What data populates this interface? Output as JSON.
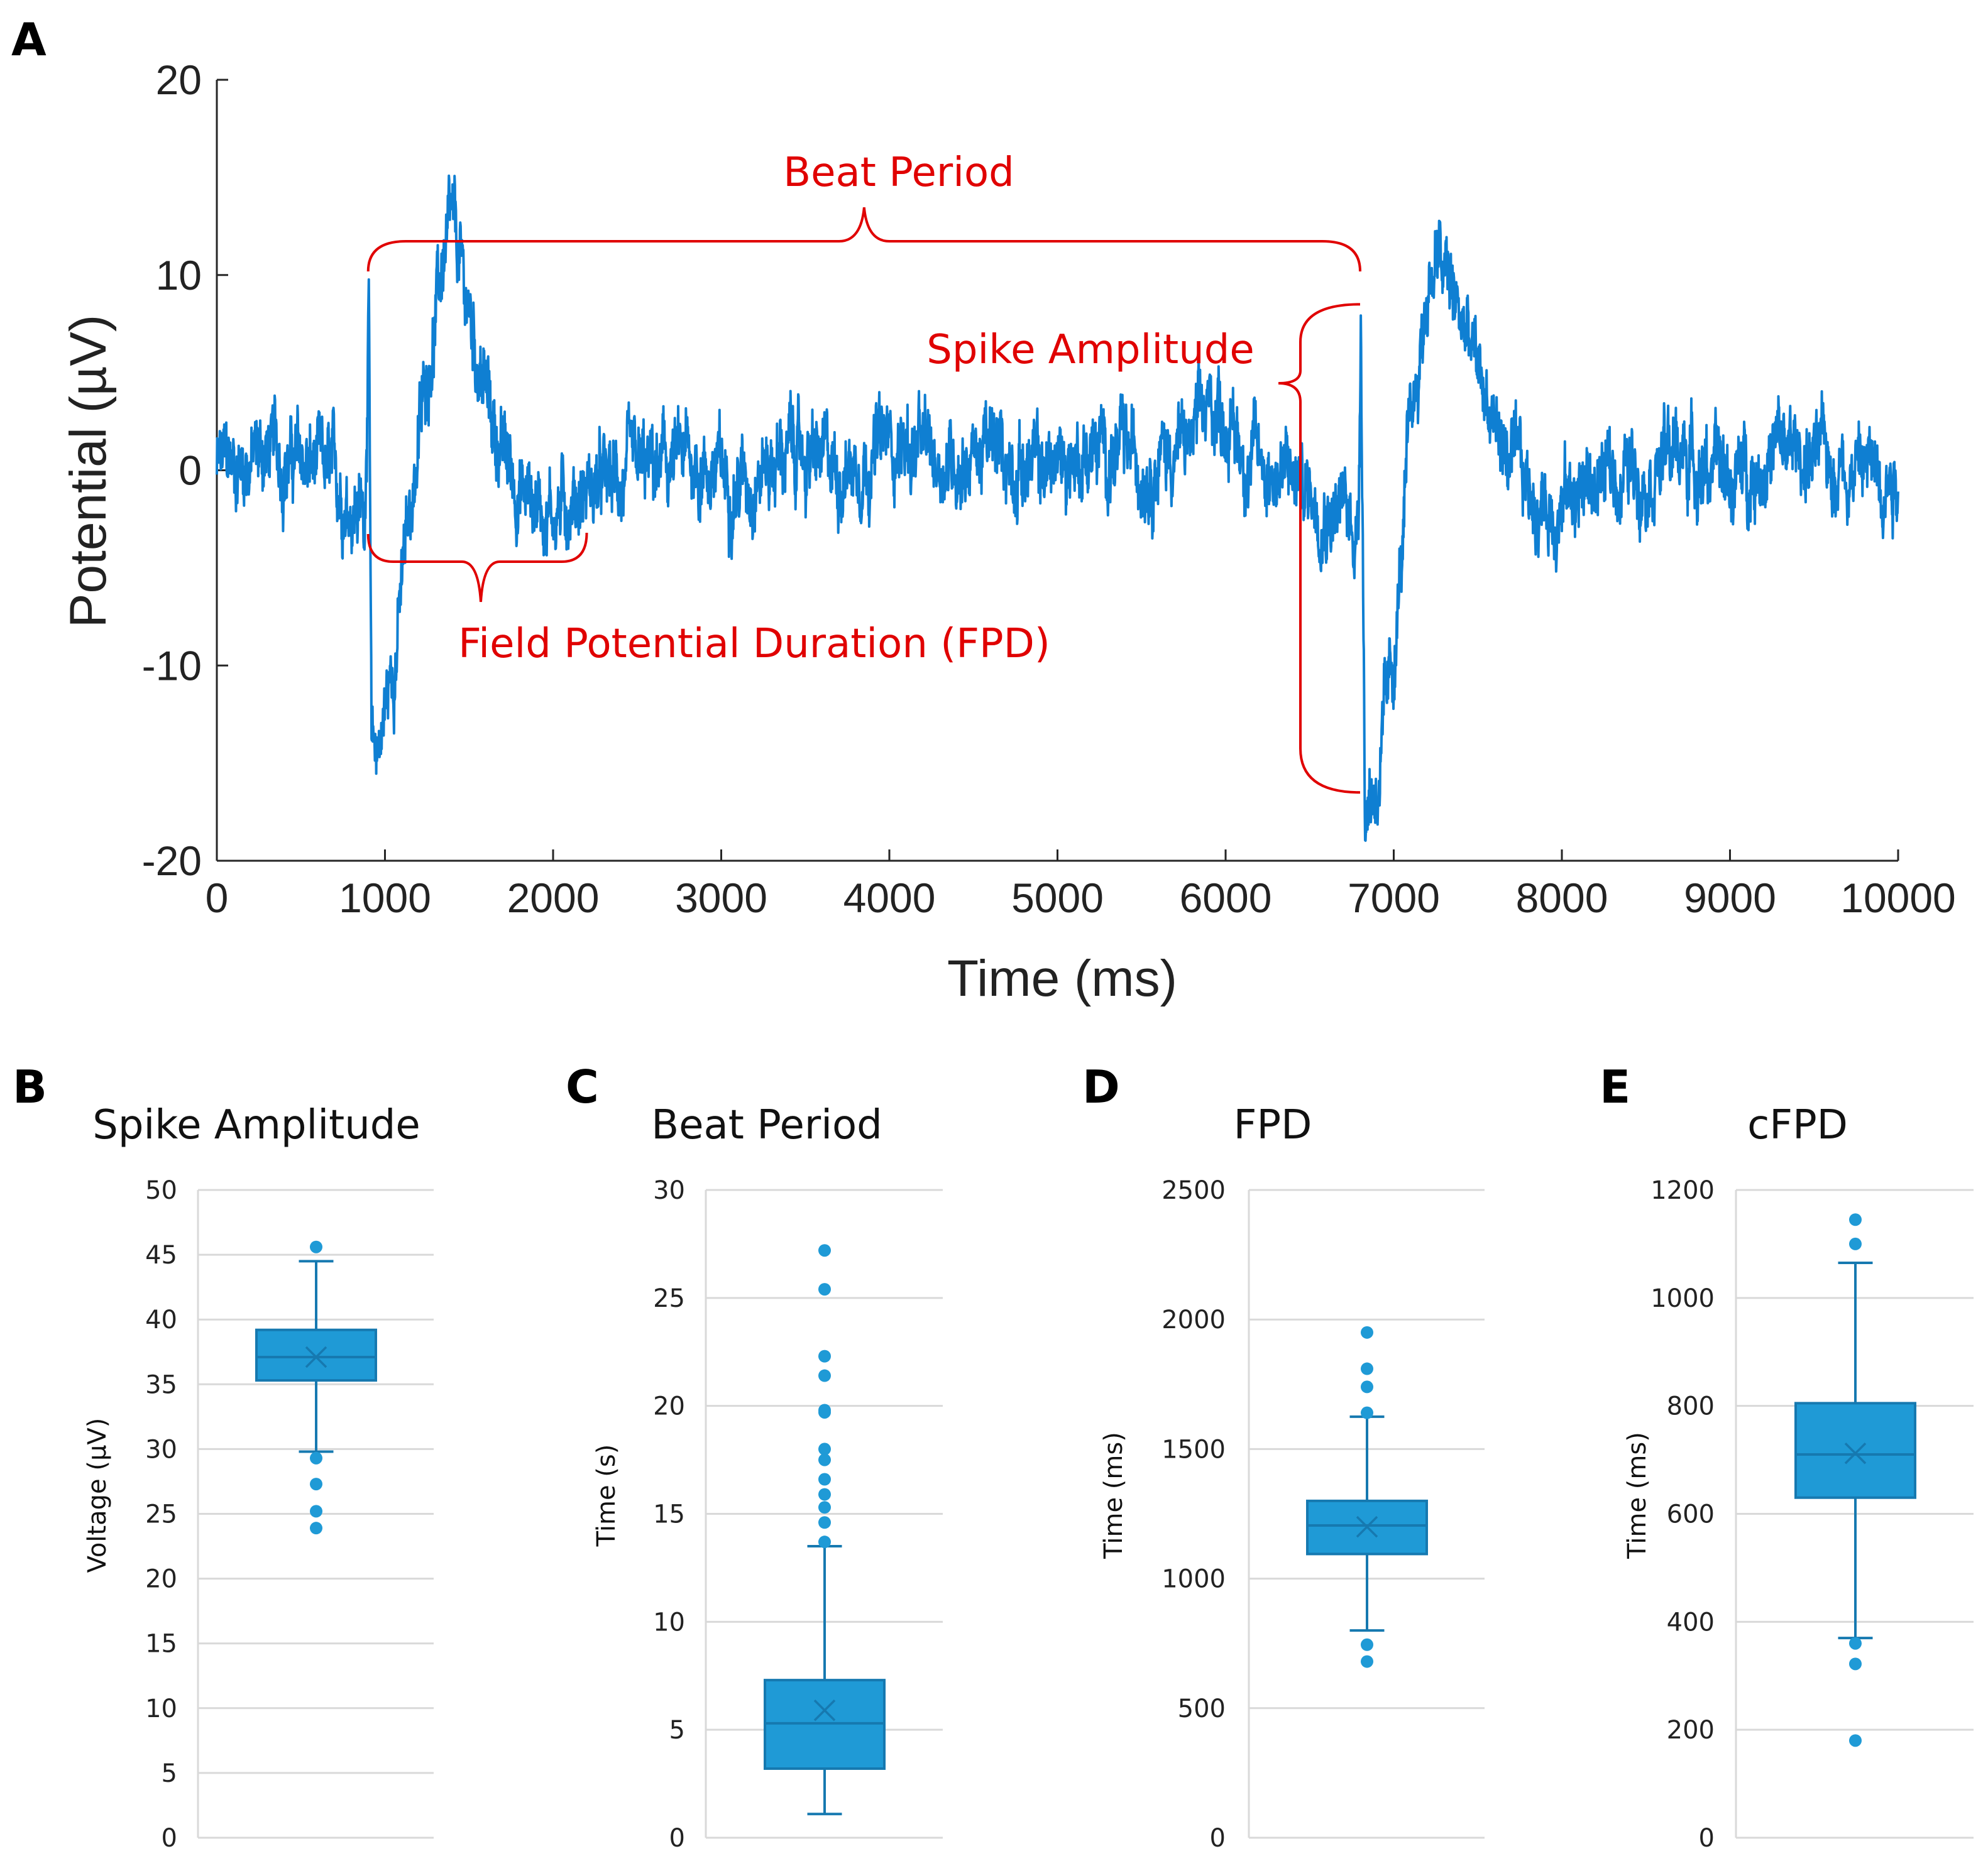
{
  "colors": {
    "trace": "#0f7fd2",
    "annotation": "#e00000",
    "box_fill": "#1f9ad6",
    "box_edge": "#1679b0",
    "grid": "#d9d9d9"
  },
  "chart_data": [
    {
      "id": "A",
      "type": "line",
      "panel_letter": "A",
      "title": "",
      "xlabel": "Time (ms)",
      "ylabel": "Potential (µV)",
      "xlim": [
        0,
        10000
      ],
      "ylim": [
        -20,
        20
      ],
      "xticks": [
        "0",
        "1000",
        "2000",
        "3000",
        "4000",
        "5000",
        "6000",
        "7000",
        "8000",
        "9000",
        "10000"
      ],
      "yticks": [
        "20",
        "10",
        "0",
        "-10",
        "-20"
      ],
      "series": [
        {
          "name": "Field potential",
          "x": [
            0,
            150,
            300,
            450,
            600,
            750,
            880,
            905,
            920,
            960,
            1050,
            1150,
            1250,
            1350,
            1400,
            1500,
            1650,
            1800,
            2000,
            2200,
            2500,
            2800,
            3100,
            3400,
            3700,
            4000,
            4300,
            4600,
            4900,
            5200,
            5500,
            5800,
            5950,
            6100,
            6300,
            6500,
            6700,
            6790,
            6805,
            6830,
            6900,
            7000,
            7100,
            7200,
            7250,
            7350,
            7500,
            7700,
            7900,
            8100,
            8400,
            8700,
            9000,
            9300,
            9600,
            10000
          ],
          "values": [
            0,
            0.5,
            1,
            0.5,
            0,
            -1,
            -2,
            9,
            -15.5,
            -14,
            -10,
            -2,
            5,
            11,
            12,
            8,
            2,
            -1,
            -2,
            -1,
            -0.5,
            0.5,
            -0.5,
            1,
            0,
            1.5,
            0.5,
            1,
            0,
            1,
            0.5,
            1.5,
            3.5,
            1,
            0,
            -1,
            -2,
            -3,
            8.5,
            -17,
            -16,
            -10,
            2,
            9,
            11,
            9,
            5,
            0,
            -2,
            -1,
            0,
            1,
            -0.5,
            1,
            0.5,
            0
          ]
        }
      ],
      "annotations": [
        {
          "label": "Beat Period",
          "x_start": 900,
          "x_end": 6800
        },
        {
          "label": "Spike Amplitude",
          "y_low": -16.5,
          "y_high": 8.5,
          "x": 6800
        },
        {
          "label": "Field Potential Duration (FPD)",
          "x_start": 900,
          "x_end": 2200
        }
      ]
    },
    {
      "id": "B",
      "type": "box",
      "panel_letter": "B",
      "title": "Spike Amplitude",
      "ylabel": "Voltage (µV)",
      "ylim": [
        0,
        50
      ],
      "yticks": [
        "0",
        "5",
        "10",
        "15",
        "20",
        "25",
        "30",
        "35",
        "40",
        "45",
        "50"
      ],
      "stats": {
        "whisker_low": 29.8,
        "q1": 35.3,
        "median": 37.1,
        "q3": 39.2,
        "whisker_high": 44.5,
        "mean": 37.1
      },
      "outliers": [
        45.6,
        29.3,
        27.3,
        25.2,
        23.9
      ]
    },
    {
      "id": "C",
      "type": "box",
      "panel_letter": "C",
      "title": "Beat Period",
      "ylabel": "Time (s)",
      "ylim": [
        0,
        30
      ],
      "yticks": [
        "0",
        "5",
        "10",
        "15",
        "20",
        "25",
        "30"
      ],
      "stats": {
        "whisker_low": 1.1,
        "q1": 3.2,
        "median": 5.3,
        "q3": 7.3,
        "whisker_high": 13.5,
        "mean": 5.9
      },
      "outliers": [
        27.2,
        25.4,
        22.3,
        21.4,
        19.8,
        19.7,
        18.0,
        17.5,
        16.6,
        15.9,
        15.3,
        14.6,
        13.7
      ]
    },
    {
      "id": "D",
      "type": "box",
      "panel_letter": "D",
      "title": "FPD",
      "ylabel": "Time (ms)",
      "ylim": [
        0,
        2500
      ],
      "yticks": [
        "0",
        "500",
        "1000",
        "1500",
        "2000",
        "2500"
      ],
      "stats": {
        "whisker_low": 800,
        "q1": 1095,
        "median": 1205,
        "q3": 1300,
        "whisker_high": 1625,
        "mean": 1200
      },
      "outliers": [
        1950,
        1810,
        1740,
        1640,
        745,
        680
      ]
    },
    {
      "id": "E",
      "type": "box",
      "panel_letter": "E",
      "title": "cFPD",
      "ylabel": "Time (ms)",
      "ylim": [
        0,
        1200
      ],
      "yticks": [
        "0",
        "200",
        "400",
        "600",
        "800",
        "1000",
        "1200"
      ],
      "stats": {
        "whisker_low": 370,
        "q1": 630,
        "median": 710,
        "q3": 805,
        "whisker_high": 1065,
        "mean": 712
      },
      "outliers": [
        1145,
        1100,
        360,
        322,
        180
      ]
    }
  ]
}
